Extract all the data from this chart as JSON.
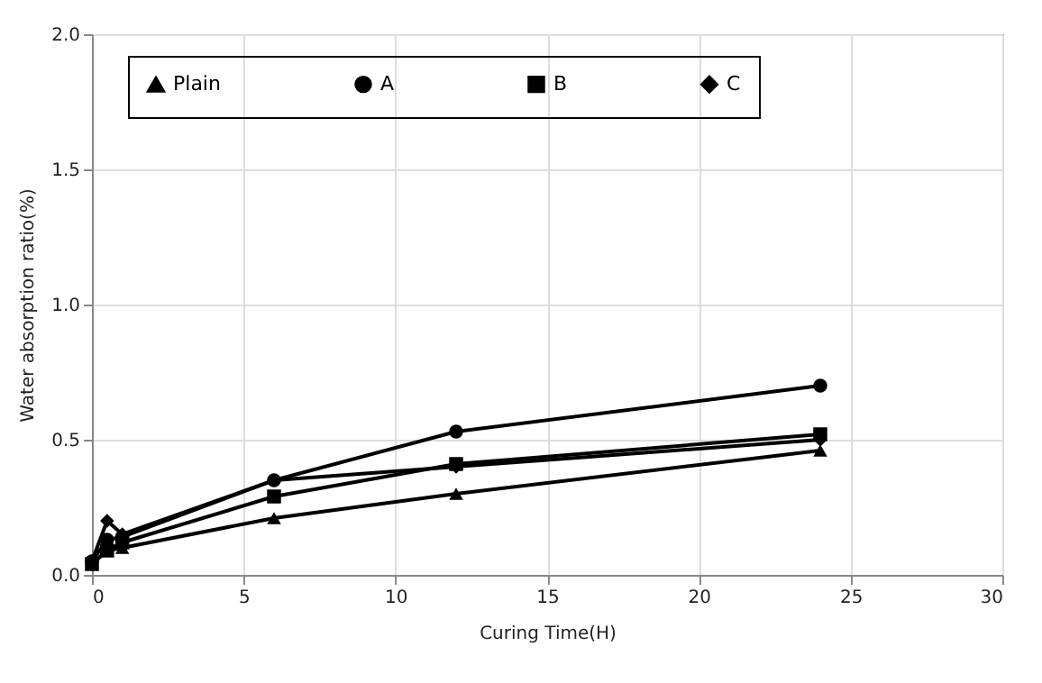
{
  "chart_data": {
    "type": "line",
    "xlabel": "Curing Time(H)",
    "ylabel": "Water absorption ratio(%)",
    "x": [
      0,
      0.5,
      1,
      6,
      12,
      24
    ],
    "series": [
      {
        "name": "Plain",
        "color": "#000000",
        "marker": "triangle",
        "values": [
          0.04,
          0.09,
          0.1,
          0.21,
          0.3,
          0.46
        ]
      },
      {
        "name": "A",
        "color": "#000000",
        "marker": "circle",
        "values": [
          0.05,
          0.13,
          0.14,
          0.35,
          0.53,
          0.7
        ]
      },
      {
        "name": "B",
        "color": "#000000",
        "marker": "square",
        "values": [
          0.04,
          0.09,
          0.12,
          0.29,
          0.41,
          0.52
        ]
      },
      {
        "name": "C",
        "color": "#000000",
        "marker": "diamond",
        "values": [
          0.05,
          0.2,
          0.15,
          0.35,
          0.4,
          0.5
        ]
      }
    ],
    "xlim": [
      0,
      30
    ],
    "xticks": [
      0,
      5,
      10,
      15,
      20,
      25,
      30
    ],
    "ylim": [
      0,
      2
    ],
    "yticks": [
      {
        "value": 0,
        "label": "0.0"
      },
      {
        "value": 0.5,
        "label": "0.5"
      },
      {
        "value": 1,
        "label": "1.0"
      },
      {
        "value": 1.5,
        "label": "1.5"
      },
      {
        "value": 2,
        "label": "2.0"
      }
    ],
    "grid": true,
    "legend": "top",
    "line_style": "solid"
  }
}
